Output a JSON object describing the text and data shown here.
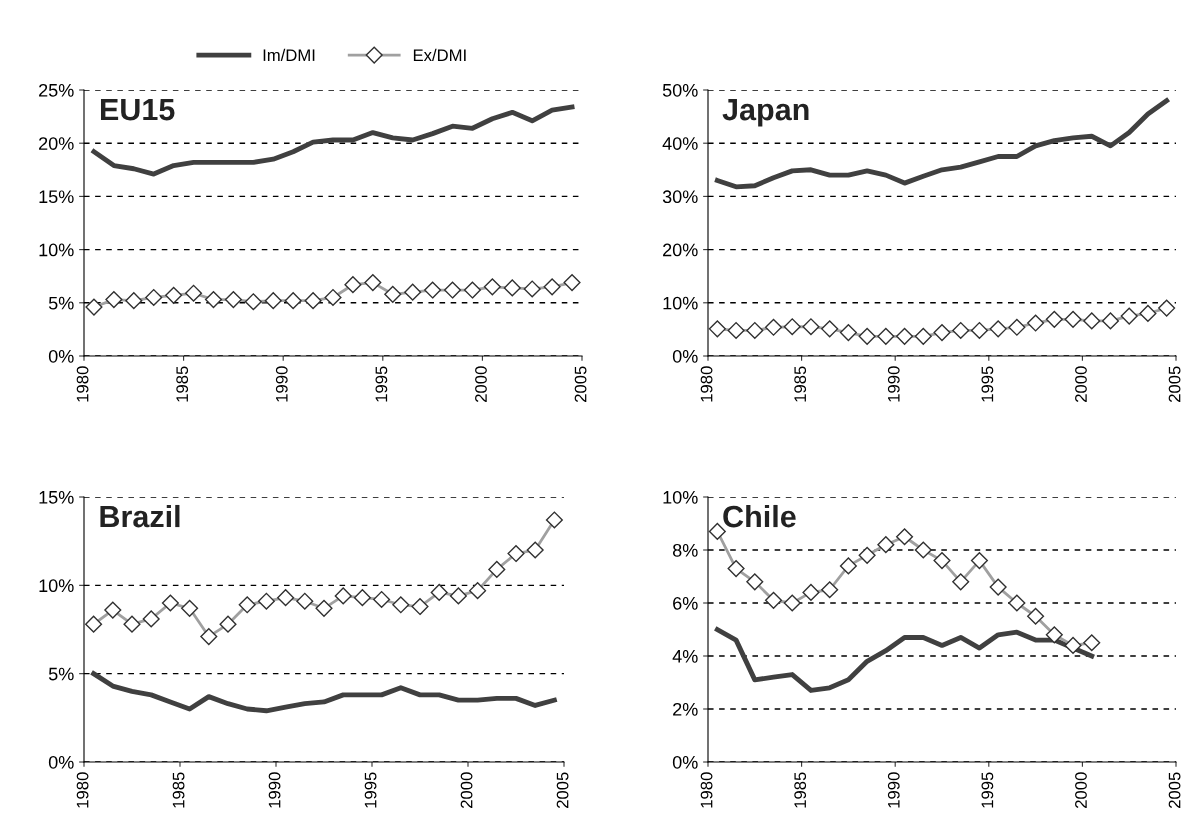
{
  "chart_data": [
    {
      "type": "line",
      "title": "EU15",
      "legend": "top",
      "grid": "y",
      "xlim": [
        1980,
        2005
      ],
      "xticks": [
        1980,
        1985,
        1990,
        1995,
        2000,
        2005
      ],
      "ylim": [
        0,
        25
      ],
      "yticks": [
        {
          "value": 0,
          "label": "0%"
        },
        {
          "value": 5,
          "label": "5%"
        },
        {
          "value": 10,
          "label": "10%"
        },
        {
          "value": 15,
          "label": "15%"
        },
        {
          "value": 20,
          "label": "20%"
        },
        {
          "value": 25,
          "label": "25%"
        }
      ],
      "x": [
        1980.5,
        1981.5,
        1982.5,
        1983.5,
        1984.5,
        1985.5,
        1986.5,
        1987.5,
        1988.5,
        1989.5,
        1990.5,
        1991.5,
        1992.5,
        1993.5,
        1994.5,
        1995.5,
        1996.5,
        1997.5,
        1998.5,
        1999.5,
        2000.5,
        2001.5,
        2002.5,
        2003.5,
        2004.5
      ],
      "series": [
        {
          "name": "Im/DMI",
          "color": "#404040",
          "marker": "none",
          "values": [
            19.2,
            17.9,
            17.6,
            17.1,
            17.9,
            18.2,
            18.2,
            18.2,
            18.2,
            18.5,
            19.2,
            20.1,
            20.3,
            20.3,
            21.0,
            20.5,
            20.3,
            20.9,
            21.6,
            21.4,
            22.3,
            22.9,
            22.1,
            23.1,
            23.4
          ]
        },
        {
          "name": "Ex/DMI",
          "color": "#a0a0a0",
          "marker": "diamond",
          "values": [
            4.6,
            5.3,
            5.2,
            5.5,
            5.7,
            5.9,
            5.3,
            5.3,
            5.1,
            5.2,
            5.2,
            5.2,
            5.5,
            6.7,
            6.9,
            5.8,
            6.0,
            6.2,
            6.2,
            6.2,
            6.5,
            6.4,
            6.3,
            6.5,
            6.9
          ]
        }
      ]
    },
    {
      "type": "line",
      "title": "Japan",
      "grid": "y",
      "xlim": [
        1980,
        2005
      ],
      "xticks": [
        1980,
        1985,
        1990,
        1995,
        2000,
        2005
      ],
      "ylim": [
        0,
        50
      ],
      "yticks": [
        {
          "value": 0,
          "label": "0%"
        },
        {
          "value": 10,
          "label": "10%"
        },
        {
          "value": 20,
          "label": "20%"
        },
        {
          "value": 30,
          "label": "30%"
        },
        {
          "value": 40,
          "label": "40%"
        },
        {
          "value": 50,
          "label": "50%"
        }
      ],
      "x": [
        1980.5,
        1981.5,
        1982.5,
        1983.5,
        1984.5,
        1985.5,
        1986.5,
        1987.5,
        1988.5,
        1989.5,
        1990.5,
        1991.5,
        1992.5,
        1993.5,
        1994.5,
        1995.5,
        1996.5,
        1997.5,
        1998.5,
        1999.5,
        2000.5,
        2001.5,
        2002.5,
        2003.5,
        2004.5
      ],
      "series": [
        {
          "color": "#404040",
          "marker": "none",
          "values": [
            33,
            31.8,
            32,
            33.5,
            34.8,
            35,
            34,
            34,
            34.8,
            34,
            32.5,
            33.8,
            35,
            35.5,
            36.5,
            37.5,
            37.5,
            39.5,
            40.5,
            41,
            41.3,
            39.5,
            42,
            45.5,
            48
          ]
        },
        {
          "color": "#a0a0a0",
          "marker": "diamond",
          "values": [
            5.1,
            4.8,
            4.8,
            5.4,
            5.5,
            5.5,
            5.1,
            4.4,
            3.7,
            3.7,
            3.7,
            3.7,
            4.4,
            4.8,
            4.8,
            5.1,
            5.4,
            6.2,
            6.9,
            6.9,
            6.6,
            6.6,
            7.5,
            8.0,
            9.0
          ]
        }
      ]
    },
    {
      "type": "line",
      "title": "Brazil",
      "grid": "y",
      "xlim": [
        1980,
        2005
      ],
      "xticks": [
        1980,
        1985,
        1990,
        1995,
        2000,
        2005
      ],
      "ylim": [
        0,
        15
      ],
      "yticks": [
        {
          "value": 0,
          "label": "0%"
        },
        {
          "value": 5,
          "label": "5%"
        },
        {
          "value": 10,
          "label": "10%"
        },
        {
          "value": 15,
          "label": "15%"
        }
      ],
      "x": [
        1980.5,
        1981.5,
        1982.5,
        1983.5,
        1984.5,
        1985.5,
        1986.5,
        1987.5,
        1988.5,
        1989.5,
        1990.5,
        1991.5,
        1992.5,
        1993.5,
        1994.5,
        1995.5,
        1996.5,
        1997.5,
        1998.5,
        1999.5,
        2000.5,
        2001.5,
        2002.5,
        2003.5,
        2004.5
      ],
      "series": [
        {
          "color": "#404040",
          "marker": "none",
          "values": [
            5.0,
            4.3,
            4.0,
            3.8,
            3.4,
            3.0,
            3.7,
            3.3,
            3.0,
            2.9,
            3.1,
            3.3,
            3.4,
            3.8,
            3.8,
            3.8,
            4.2,
            3.8,
            3.8,
            3.5,
            3.5,
            3.6,
            3.6,
            3.2,
            3.5
          ]
        },
        {
          "color": "#a0a0a0",
          "marker": "diamond",
          "values": [
            7.8,
            8.6,
            7.8,
            8.1,
            9.0,
            8.7,
            7.1,
            7.8,
            8.9,
            9.1,
            9.3,
            9.1,
            8.7,
            9.4,
            9.3,
            9.2,
            8.9,
            8.8,
            9.6,
            9.4,
            9.7,
            10.9,
            11.8,
            12.0,
            13.7
          ]
        }
      ]
    },
    {
      "type": "line",
      "title": "Chile",
      "grid": "y",
      "xlim": [
        1980,
        2005
      ],
      "xticks": [
        1980,
        1985,
        1990,
        1995,
        2000,
        2005
      ],
      "ylim": [
        0,
        10
      ],
      "yticks": [
        {
          "value": 0,
          "label": "0%"
        },
        {
          "value": 2,
          "label": "2%"
        },
        {
          "value": 4,
          "label": "4%"
        },
        {
          "value": 6,
          "label": "6%"
        },
        {
          "value": 8,
          "label": "8%"
        },
        {
          "value": 10,
          "label": "10%"
        }
      ],
      "x": [
        1980.5,
        1981.5,
        1982.5,
        1983.5,
        1984.5,
        1985.5,
        1986.5,
        1987.5,
        1988.5,
        1989.5,
        1990.5,
        1991.5,
        1992.5,
        1993.5,
        1994.5,
        1995.5,
        1996.5,
        1997.5,
        1998.5,
        1999.5,
        2000.5
      ],
      "series": [
        {
          "color": "#404040",
          "marker": "none",
          "values": [
            5.0,
            4.6,
            3.1,
            3.2,
            3.3,
            2.7,
            2.8,
            3.1,
            3.8,
            4.2,
            4.7,
            4.7,
            4.4,
            4.7,
            4.3,
            4.8,
            4.9,
            4.6,
            4.6,
            4.3,
            4.0
          ]
        },
        {
          "color": "#a0a0a0",
          "marker": "diamond",
          "values": [
            8.7,
            7.3,
            6.8,
            6.1,
            6.0,
            6.4,
            6.5,
            7.4,
            7.8,
            8.2,
            8.5,
            8.0,
            7.6,
            6.8,
            7.6,
            6.6,
            6.0,
            5.5,
            4.8,
            4.4,
            4.5
          ]
        }
      ]
    }
  ]
}
